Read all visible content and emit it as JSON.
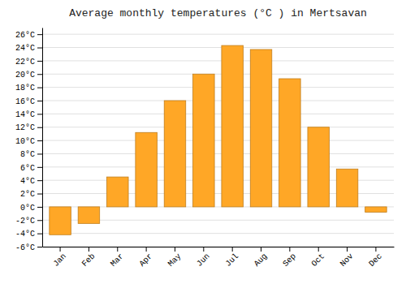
{
  "chart_data": {
    "type": "bar",
    "title": "Average monthly temperatures (°C ) in Mertsavan",
    "categories": [
      "Jan",
      "Feb",
      "Mar",
      "Apr",
      "May",
      "Jun",
      "Jul",
      "Aug",
      "Sep",
      "Oct",
      "Nov",
      "Dec"
    ],
    "values": [
      -4.2,
      -2.5,
      4.5,
      11.2,
      16.0,
      20.0,
      24.3,
      23.7,
      19.3,
      12.0,
      5.7,
      -0.8
    ],
    "color": "#FFA726",
    "ylim": [
      -6,
      27
    ],
    "yticks": [
      {
        "value": -6,
        "label": "-6°C"
      },
      {
        "value": -4,
        "label": "-4°C"
      },
      {
        "value": -2,
        "label": "-2°C"
      },
      {
        "value": 0,
        "label": "0°C"
      },
      {
        "value": 2,
        "label": "2°C"
      },
      {
        "value": 4,
        "label": "4°C"
      },
      {
        "value": 6,
        "label": "6°C"
      },
      {
        "value": 8,
        "label": "8°C"
      },
      {
        "value": 10,
        "label": "10°C"
      },
      {
        "value": 12,
        "label": "12°C"
      },
      {
        "value": 14,
        "label": "14°C"
      },
      {
        "value": 16,
        "label": "16°C"
      },
      {
        "value": 18,
        "label": "18°C"
      },
      {
        "value": 20,
        "label": "20°C"
      },
      {
        "value": 22,
        "label": "22°C"
      },
      {
        "value": 24,
        "label": "24°C"
      },
      {
        "value": 26,
        "label": "26°C"
      }
    ],
    "grid": true
  }
}
